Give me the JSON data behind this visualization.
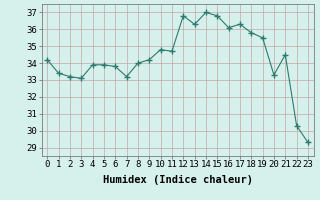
{
  "x": [
    0,
    1,
    2,
    3,
    4,
    5,
    6,
    7,
    8,
    9,
    10,
    11,
    12,
    13,
    14,
    15,
    16,
    17,
    18,
    19,
    20,
    21,
    22,
    23
  ],
  "y": [
    34.2,
    33.4,
    33.2,
    33.1,
    33.9,
    33.9,
    33.8,
    33.2,
    34.0,
    34.2,
    34.8,
    34.7,
    36.8,
    36.3,
    37.0,
    36.8,
    36.1,
    36.3,
    35.8,
    35.5,
    33.3,
    34.5,
    30.3,
    29.3
  ],
  "line_color": "#2d7a6e",
  "marker": "+",
  "marker_size": 4,
  "bg_color": "#d6f0eb",
  "grid_color": "#c0a8a8",
  "xlabel": "Humidex (Indice chaleur)",
  "ylabel_ticks": [
    29,
    30,
    31,
    32,
    33,
    34,
    35,
    36,
    37
  ],
  "xlim": [
    -0.5,
    23.5
  ],
  "ylim": [
    28.5,
    37.5
  ],
  "xtick_labels": [
    "0",
    "1",
    "2",
    "3",
    "4",
    "5",
    "6",
    "7",
    "8",
    "9",
    "10",
    "11",
    "12",
    "13",
    "14",
    "15",
    "16",
    "17",
    "18",
    "19",
    "20",
    "21",
    "22",
    "23"
  ],
  "xlabel_fontsize": 7.5,
  "tick_fontsize": 6.5
}
